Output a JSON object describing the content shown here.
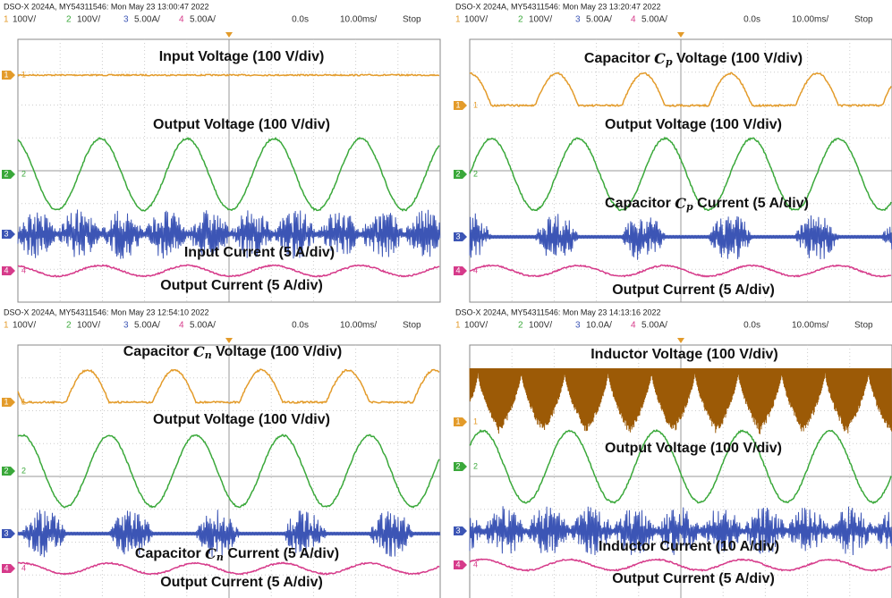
{
  "panels": [
    {
      "header": {
        "device": "DSO-X 2024A, MY54311546: Mon May 23 13:00:47 2022",
        "channels": [
          {
            "num": "1",
            "scale": "100V/"
          },
          {
            "num": "2",
            "scale": "100V/"
          },
          {
            "num": "3",
            "scale": "5.00A/"
          },
          {
            "num": "4",
            "scale": "5.00A/"
          }
        ],
        "time": "0.0s",
        "timebase": "10.00ms/",
        "status": "Stop"
      },
      "labels": [
        {
          "text": "Input Voltage (100 V/div)"
        },
        {
          "text": "Output Voltage (100 V/div)"
        },
        {
          "text": "Input Current (5 A/div)"
        },
        {
          "text": "Output Current (5 A/div)"
        }
      ]
    },
    {
      "header": {
        "device": "DSO-X 2024A, MY54311546: Mon May 23 13:20:47 2022",
        "channels": [
          {
            "num": "1",
            "scale": "100V/"
          },
          {
            "num": "2",
            "scale": "100V/"
          },
          {
            "num": "3",
            "scale": "5.00A/"
          },
          {
            "num": "4",
            "scale": "5.00A/"
          }
        ],
        "time": "0.0s",
        "timebase": "10.00ms/",
        "status": "Stop"
      },
      "labels": [
        {
          "pre": "Capacitor ",
          "sym": "C",
          "sub": "p",
          "post": " Voltage (100 V/div)"
        },
        {
          "text": "Output Voltage (100 V/div)"
        },
        {
          "pre": "Capacitor ",
          "sym": "C",
          "sub": "p",
          "post": " Current (5 A/div)"
        },
        {
          "text": "Output Current (5 A/div)"
        }
      ]
    },
    {
      "header": {
        "device": "DSO-X 2024A, MY54311546: Mon May 23 12:54:10 2022",
        "channels": [
          {
            "num": "1",
            "scale": "100V/"
          },
          {
            "num": "2",
            "scale": "100V/"
          },
          {
            "num": "3",
            "scale": "5.00A/"
          },
          {
            "num": "4",
            "scale": "5.00A/"
          }
        ],
        "time": "0.0s",
        "timebase": "10.00ms/",
        "status": "Stop"
      },
      "labels": [
        {
          "pre": "Capacitor ",
          "sym": "C",
          "sub": "n",
          "post": " Voltage (100 V/div)"
        },
        {
          "text": "Output Voltage (100 V/div)"
        },
        {
          "pre": "Capacitor ",
          "sym": "C",
          "sub": "n",
          "post": " Current (5 A/div)"
        },
        {
          "text": "Output Current (5 A/div)"
        }
      ]
    },
    {
      "header": {
        "device": "DSO-X 2024A, MY54311546: Mon May 23 14:13:16 2022",
        "channels": [
          {
            "num": "1",
            "scale": "100V/"
          },
          {
            "num": "2",
            "scale": "100V/"
          },
          {
            "num": "3",
            "scale": "10.0A/"
          },
          {
            "num": "4",
            "scale": "5.00A/"
          }
        ],
        "time": "0.0s",
        "timebase": "10.00ms/",
        "status": "Stop"
      },
      "labels": [
        {
          "text": "Inductor Voltage (100 V/div)"
        },
        {
          "text": "Output Voltage (100 V/div)"
        },
        {
          "text": "Inductor Current (10 A/div)"
        },
        {
          "text": "Output Current (5 A/div)"
        }
      ]
    }
  ]
}
